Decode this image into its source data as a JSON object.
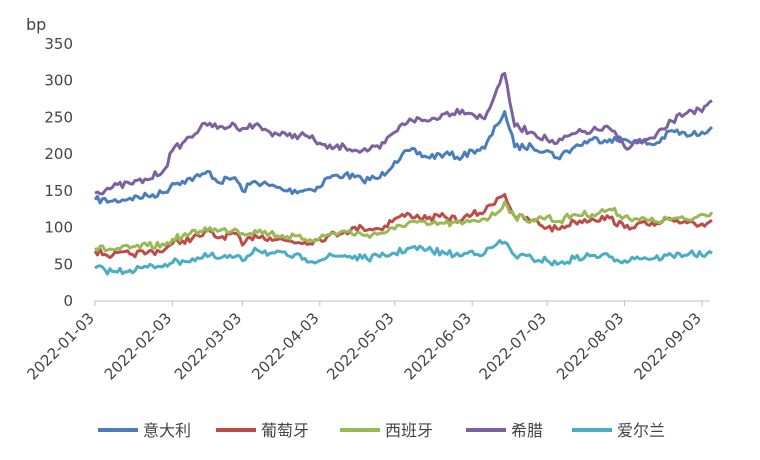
{
  "chart_data": {
    "type": "line",
    "unit": "bp",
    "ylim": [
      0,
      350
    ],
    "y_ticks": [
      0,
      50,
      100,
      150,
      200,
      250,
      300,
      350
    ],
    "x_tick_labels": [
      "2022-01-03",
      "2022-02-03",
      "2022-03-03",
      "2022-04-03",
      "2022-05-03",
      "2022-06-03",
      "2022-07-03",
      "2022-08-03",
      "2022-09-03"
    ],
    "grid": false,
    "legend_position": "bottom",
    "series": [
      {
        "name": "意大利",
        "color": "#4A7EBB",
        "points": [
          [
            "2022-01-03",
            138
          ],
          [
            "2022-01-10",
            136
          ],
          [
            "2022-01-17",
            140
          ],
          [
            "2022-01-24",
            143
          ],
          [
            "2022-01-31",
            148
          ],
          [
            "2022-02-03",
            160
          ],
          [
            "2022-02-07",
            163
          ],
          [
            "2022-02-14",
            170
          ],
          [
            "2022-02-18",
            176
          ],
          [
            "2022-02-21",
            162
          ],
          [
            "2022-02-28",
            168
          ],
          [
            "2022-03-03",
            150
          ],
          [
            "2022-03-08",
            163
          ],
          [
            "2022-03-14",
            157
          ],
          [
            "2022-03-21",
            150
          ],
          [
            "2022-03-28",
            151
          ],
          [
            "2022-04-03",
            155
          ],
          [
            "2022-04-06",
            168
          ],
          [
            "2022-04-13",
            172
          ],
          [
            "2022-04-20",
            165
          ],
          [
            "2022-04-27",
            168
          ],
          [
            "2022-05-03",
            190
          ],
          [
            "2022-05-09",
            205
          ],
          [
            "2022-05-16",
            196
          ],
          [
            "2022-05-23",
            200
          ],
          [
            "2022-05-30",
            196
          ],
          [
            "2022-06-03",
            205
          ],
          [
            "2022-06-08",
            208
          ],
          [
            "2022-06-13",
            240
          ],
          [
            "2022-06-16",
            258
          ],
          [
            "2022-06-20",
            210
          ],
          [
            "2022-06-27",
            210
          ],
          [
            "2022-07-03",
            205
          ],
          [
            "2022-07-07",
            195
          ],
          [
            "2022-07-14",
            210
          ],
          [
            "2022-07-21",
            220
          ],
          [
            "2022-07-28",
            220
          ],
          [
            "2022-08-03",
            220
          ],
          [
            "2022-08-08",
            218
          ],
          [
            "2022-08-15",
            213
          ],
          [
            "2022-08-22",
            232
          ],
          [
            "2022-08-29",
            225
          ],
          [
            "2022-09-03",
            230
          ],
          [
            "2022-09-07",
            237
          ]
        ]
      },
      {
        "name": "葡萄牙",
        "color": "#BE4B48",
        "points": [
          [
            "2022-01-03",
            68
          ],
          [
            "2022-01-10",
            62
          ],
          [
            "2022-01-17",
            64
          ],
          [
            "2022-01-24",
            66
          ],
          [
            "2022-01-31",
            70
          ],
          [
            "2022-02-03",
            78
          ],
          [
            "2022-02-07",
            82
          ],
          [
            "2022-02-14",
            88
          ],
          [
            "2022-02-18",
            95
          ],
          [
            "2022-02-21",
            86
          ],
          [
            "2022-02-28",
            92
          ],
          [
            "2022-03-03",
            76
          ],
          [
            "2022-03-08",
            90
          ],
          [
            "2022-03-14",
            86
          ],
          [
            "2022-03-21",
            82
          ],
          [
            "2022-03-28",
            80
          ],
          [
            "2022-04-03",
            84
          ],
          [
            "2022-04-06",
            88
          ],
          [
            "2022-04-13",
            95
          ],
          [
            "2022-04-20",
            100
          ],
          [
            "2022-04-27",
            98
          ],
          [
            "2022-05-03",
            112
          ],
          [
            "2022-05-09",
            118
          ],
          [
            "2022-05-16",
            112
          ],
          [
            "2022-05-23",
            115
          ],
          [
            "2022-05-30",
            110
          ],
          [
            "2022-06-03",
            118
          ],
          [
            "2022-06-08",
            122
          ],
          [
            "2022-06-13",
            140
          ],
          [
            "2022-06-16",
            145
          ],
          [
            "2022-06-20",
            115
          ],
          [
            "2022-06-27",
            110
          ],
          [
            "2022-07-03",
            100
          ],
          [
            "2022-07-07",
            98
          ],
          [
            "2022-07-14",
            108
          ],
          [
            "2022-07-21",
            112
          ],
          [
            "2022-07-28",
            113
          ],
          [
            "2022-08-03",
            100
          ],
          [
            "2022-08-08",
            105
          ],
          [
            "2022-08-15",
            103
          ],
          [
            "2022-08-22",
            110
          ],
          [
            "2022-08-29",
            108
          ],
          [
            "2022-09-03",
            105
          ],
          [
            "2022-09-07",
            110
          ]
        ]
      },
      {
        "name": "西班牙",
        "color": "#98B954",
        "points": [
          [
            "2022-01-03",
            72
          ],
          [
            "2022-01-10",
            70
          ],
          [
            "2022-01-17",
            72
          ],
          [
            "2022-01-24",
            75
          ],
          [
            "2022-01-31",
            76
          ],
          [
            "2022-02-03",
            84
          ],
          [
            "2022-02-07",
            88
          ],
          [
            "2022-02-14",
            95
          ],
          [
            "2022-02-18",
            100
          ],
          [
            "2022-02-21",
            95
          ],
          [
            "2022-02-28",
            98
          ],
          [
            "2022-03-03",
            92
          ],
          [
            "2022-03-08",
            96
          ],
          [
            "2022-03-14",
            92
          ],
          [
            "2022-03-21",
            88
          ],
          [
            "2022-03-28",
            84
          ],
          [
            "2022-04-03",
            86
          ],
          [
            "2022-04-06",
            90
          ],
          [
            "2022-04-13",
            95
          ],
          [
            "2022-04-20",
            90
          ],
          [
            "2022-04-27",
            92
          ],
          [
            "2022-05-03",
            98
          ],
          [
            "2022-05-09",
            108
          ],
          [
            "2022-05-16",
            104
          ],
          [
            "2022-05-23",
            106
          ],
          [
            "2022-05-30",
            105
          ],
          [
            "2022-06-03",
            110
          ],
          [
            "2022-06-08",
            112
          ],
          [
            "2022-06-13",
            120
          ],
          [
            "2022-06-16",
            135
          ],
          [
            "2022-06-20",
            115
          ],
          [
            "2022-06-27",
            110
          ],
          [
            "2022-07-03",
            115
          ],
          [
            "2022-07-07",
            108
          ],
          [
            "2022-07-14",
            118
          ],
          [
            "2022-07-21",
            118
          ],
          [
            "2022-07-28",
            125
          ],
          [
            "2022-08-03",
            115
          ],
          [
            "2022-08-08",
            112
          ],
          [
            "2022-08-15",
            108
          ],
          [
            "2022-08-22",
            112
          ],
          [
            "2022-08-29",
            110
          ],
          [
            "2022-09-03",
            118
          ],
          [
            "2022-09-07",
            121
          ]
        ]
      },
      {
        "name": "希腊",
        "color": "#7D60A0",
        "points": [
          [
            "2022-01-03",
            147
          ],
          [
            "2022-01-10",
            155
          ],
          [
            "2022-01-17",
            160
          ],
          [
            "2022-01-24",
            165
          ],
          [
            "2022-01-31",
            180
          ],
          [
            "2022-02-03",
            205
          ],
          [
            "2022-02-07",
            215
          ],
          [
            "2022-02-14",
            235
          ],
          [
            "2022-02-18",
            242
          ],
          [
            "2022-02-21",
            235
          ],
          [
            "2022-02-28",
            240
          ],
          [
            "2022-03-03",
            235
          ],
          [
            "2022-03-08",
            240
          ],
          [
            "2022-03-14",
            230
          ],
          [
            "2022-03-21",
            225
          ],
          [
            "2022-03-28",
            226
          ],
          [
            "2022-04-03",
            215
          ],
          [
            "2022-04-06",
            208
          ],
          [
            "2022-04-13",
            210
          ],
          [
            "2022-04-20",
            205
          ],
          [
            "2022-04-27",
            208
          ],
          [
            "2022-05-03",
            230
          ],
          [
            "2022-05-09",
            248
          ],
          [
            "2022-05-16",
            245
          ],
          [
            "2022-05-23",
            255
          ],
          [
            "2022-05-30",
            260
          ],
          [
            "2022-06-03",
            255
          ],
          [
            "2022-06-08",
            248
          ],
          [
            "2022-06-13",
            290
          ],
          [
            "2022-06-16",
            310
          ],
          [
            "2022-06-20",
            238
          ],
          [
            "2022-06-27",
            230
          ],
          [
            "2022-07-03",
            220
          ],
          [
            "2022-07-07",
            215
          ],
          [
            "2022-07-14",
            228
          ],
          [
            "2022-07-21",
            232
          ],
          [
            "2022-07-28",
            235
          ],
          [
            "2022-08-03",
            210
          ],
          [
            "2022-08-08",
            215
          ],
          [
            "2022-08-15",
            222
          ],
          [
            "2022-08-22",
            245
          ],
          [
            "2022-08-29",
            260
          ],
          [
            "2022-09-03",
            258
          ],
          [
            "2022-09-07",
            273
          ]
        ]
      },
      {
        "name": "爱尔兰",
        "color": "#4BACC6",
        "points": [
          [
            "2022-01-03",
            45
          ],
          [
            "2022-01-10",
            40
          ],
          [
            "2022-01-17",
            42
          ],
          [
            "2022-01-24",
            46
          ],
          [
            "2022-01-31",
            50
          ],
          [
            "2022-02-03",
            52
          ],
          [
            "2022-02-07",
            55
          ],
          [
            "2022-02-14",
            58
          ],
          [
            "2022-02-18",
            62
          ],
          [
            "2022-02-21",
            58
          ],
          [
            "2022-02-28",
            60
          ],
          [
            "2022-03-03",
            55
          ],
          [
            "2022-03-08",
            72
          ],
          [
            "2022-03-14",
            65
          ],
          [
            "2022-03-21",
            62
          ],
          [
            "2022-03-28",
            58
          ],
          [
            "2022-04-03",
            55
          ],
          [
            "2022-04-06",
            60
          ],
          [
            "2022-04-13",
            62
          ],
          [
            "2022-04-20",
            58
          ],
          [
            "2022-04-27",
            60
          ],
          [
            "2022-05-03",
            65
          ],
          [
            "2022-05-09",
            72
          ],
          [
            "2022-05-16",
            70
          ],
          [
            "2022-05-23",
            65
          ],
          [
            "2022-05-30",
            62
          ],
          [
            "2022-06-03",
            68
          ],
          [
            "2022-06-08",
            65
          ],
          [
            "2022-06-13",
            78
          ],
          [
            "2022-06-16",
            80
          ],
          [
            "2022-06-20",
            62
          ],
          [
            "2022-06-27",
            58
          ],
          [
            "2022-07-03",
            55
          ],
          [
            "2022-07-07",
            50
          ],
          [
            "2022-07-14",
            58
          ],
          [
            "2022-07-21",
            62
          ],
          [
            "2022-07-28",
            60
          ],
          [
            "2022-08-03",
            55
          ],
          [
            "2022-08-08",
            60
          ],
          [
            "2022-08-15",
            58
          ],
          [
            "2022-08-22",
            62
          ],
          [
            "2022-08-29",
            65
          ],
          [
            "2022-09-03",
            62
          ],
          [
            "2022-09-07",
            65
          ]
        ]
      }
    ]
  }
}
